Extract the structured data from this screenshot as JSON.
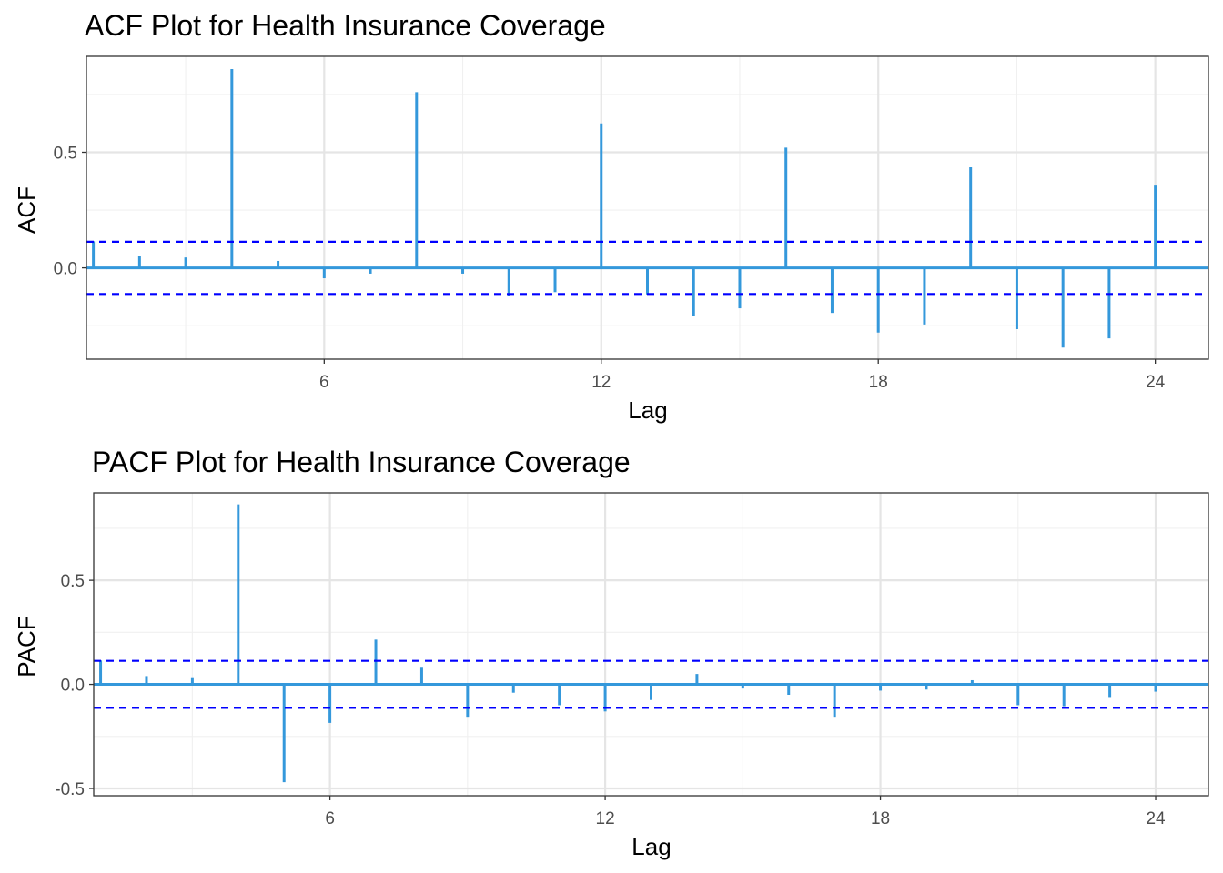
{
  "chart_data": [
    {
      "type": "bar",
      "title": "ACF Plot for Health Insurance Coverage",
      "xlabel": "Lag",
      "ylabel": "ACF",
      "xlim": [
        0.85,
        25.15
      ],
      "ylim": [
        -0.395,
        0.915
      ],
      "xticks": [
        6,
        12,
        18,
        24
      ],
      "yticks": [
        0.0,
        0.5
      ],
      "ytick_labels": [
        "0.0",
        "0.5"
      ],
      "minor_yticks": [
        -0.25,
        0.25,
        0.75
      ],
      "minor_xticks": [
        3,
        9,
        15,
        21
      ],
      "ci": 0.113,
      "grid": true,
      "bar_color": "#3498db",
      "ci_color": "#0000ff",
      "lags": [
        1,
        2,
        3,
        4,
        5,
        6,
        7,
        8,
        9,
        10,
        11,
        12,
        13,
        14,
        15,
        16,
        17,
        18,
        19,
        20,
        21,
        22,
        23,
        24
      ],
      "values": [
        0.115,
        0.05,
        0.045,
        0.86,
        0.03,
        -0.045,
        -0.025,
        0.76,
        -0.025,
        -0.12,
        -0.105,
        0.625,
        -0.115,
        -0.21,
        -0.175,
        0.52,
        -0.195,
        -0.28,
        -0.245,
        0.435,
        -0.265,
        -0.345,
        -0.305,
        0.36
      ]
    },
    {
      "type": "bar",
      "title": "PACF Plot for Health Insurance Coverage",
      "xlabel": "Lag",
      "ylabel": "PACF",
      "xlim": [
        0.85,
        25.15
      ],
      "ylim": [
        -0.535,
        0.92
      ],
      "xticks": [
        6,
        12,
        18,
        24
      ],
      "yticks": [
        -0.5,
        0.0,
        0.5
      ],
      "ytick_labels": [
        "-0.5",
        "0.0",
        "0.5"
      ],
      "minor_yticks": [
        -0.25,
        0.25,
        0.75
      ],
      "minor_xticks": [
        3,
        9,
        15,
        21
      ],
      "ci": 0.113,
      "grid": true,
      "bar_color": "#3498db",
      "ci_color": "#0000ff",
      "lags": [
        1,
        2,
        3,
        4,
        5,
        6,
        7,
        8,
        9,
        10,
        11,
        12,
        13,
        14,
        15,
        16,
        17,
        18,
        19,
        20,
        21,
        22,
        23,
        24
      ],
      "values": [
        0.115,
        0.04,
        0.03,
        0.865,
        -0.47,
        -0.185,
        0.215,
        0.08,
        -0.16,
        -0.04,
        -0.1,
        -0.13,
        -0.075,
        0.05,
        -0.02,
        -0.05,
        -0.16,
        -0.03,
        -0.025,
        0.02,
        -0.1,
        -0.105,
        -0.065,
        -0.035
      ]
    }
  ]
}
